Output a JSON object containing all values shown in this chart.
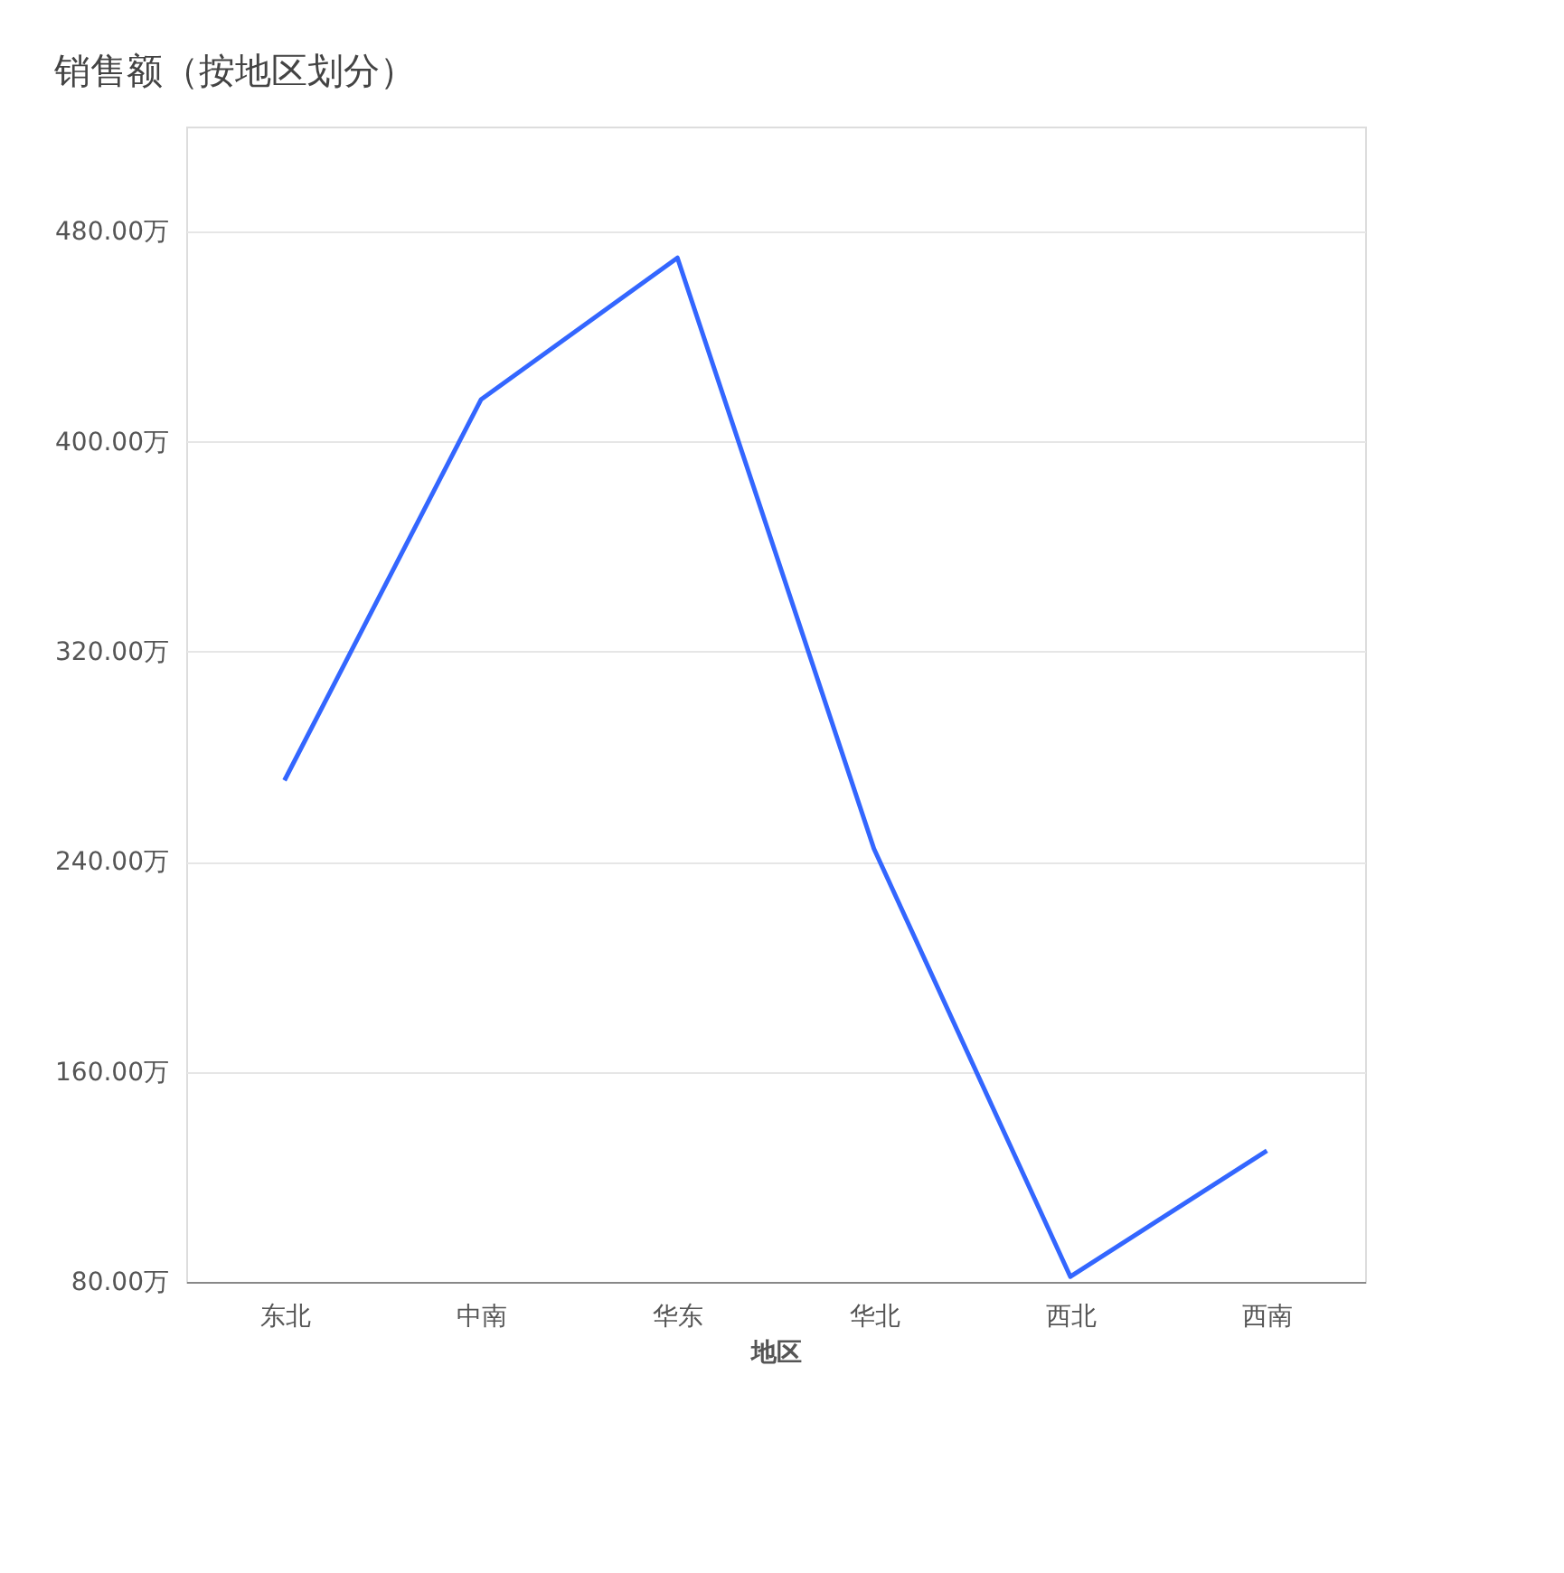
{
  "chart_data": {
    "type": "line",
    "title": "销售额（按地区划分）",
    "xlabel": "地区",
    "categories": [
      "东北",
      "中南",
      "华东",
      "华北",
      "西北",
      "西南"
    ],
    "series": [
      {
        "color": "#3366ff",
        "values": [
          271,
          416,
          470,
          245,
          82,
          130
        ]
      }
    ],
    "ylim": [
      80,
      520
    ],
    "yticks": [
      {
        "value": 80,
        "label": "80.00万"
      },
      {
        "value": 160,
        "label": "160.00万"
      },
      {
        "value": 240,
        "label": "240.00万"
      },
      {
        "value": 320,
        "label": "320.00万"
      },
      {
        "value": 400,
        "label": "400.00万"
      },
      {
        "value": 480,
        "label": "480.00万"
      }
    ],
    "grid": "y",
    "legend": false,
    "marker": "none",
    "line_style": "solid"
  }
}
